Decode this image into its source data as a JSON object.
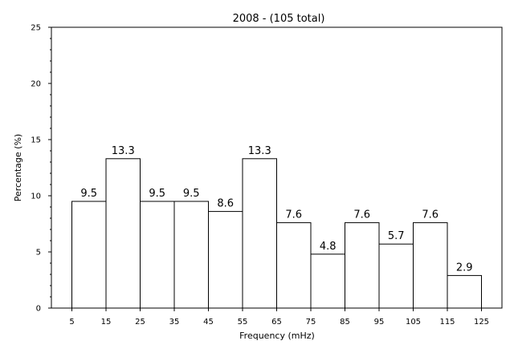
{
  "chart_data": {
    "type": "bar",
    "title": "2008 - (105 total)",
    "xlabel": "Frequency (mHz)",
    "ylabel": "Percentage (%)",
    "ylim": [
      0,
      25
    ],
    "xlim": [
      -1,
      131
    ],
    "yticks": [
      0,
      5,
      10,
      15,
      20,
      25
    ],
    "yminor_step": 1,
    "xticks": [
      5,
      15,
      25,
      35,
      45,
      55,
      65,
      75,
      85,
      95,
      105,
      115,
      125
    ],
    "bins": [
      {
        "start": 5,
        "end": 15,
        "value": 9.5,
        "label": "9.5"
      },
      {
        "start": 15,
        "end": 25,
        "value": 13.3,
        "label": "13.3"
      },
      {
        "start": 25,
        "end": 35,
        "value": 9.5,
        "label": "9.5"
      },
      {
        "start": 35,
        "end": 45,
        "value": 9.5,
        "label": "9.5"
      },
      {
        "start": 45,
        "end": 55,
        "value": 8.6,
        "label": "8.6"
      },
      {
        "start": 55,
        "end": 65,
        "value": 13.3,
        "label": "13.3"
      },
      {
        "start": 65,
        "end": 75,
        "value": 7.6,
        "label": "7.6"
      },
      {
        "start": 75,
        "end": 85,
        "value": 4.8,
        "label": "4.8"
      },
      {
        "start": 85,
        "end": 95,
        "value": 7.6,
        "label": "7.6"
      },
      {
        "start": 95,
        "end": 105,
        "value": 5.7,
        "label": "5.7"
      },
      {
        "start": 105,
        "end": 115,
        "value": 7.6,
        "label": "7.6"
      },
      {
        "start": 115,
        "end": 125,
        "value": 2.9,
        "label": "2.9"
      }
    ],
    "grid": false,
    "bar_color": "#ffffff",
    "edge_color": "#000000"
  }
}
